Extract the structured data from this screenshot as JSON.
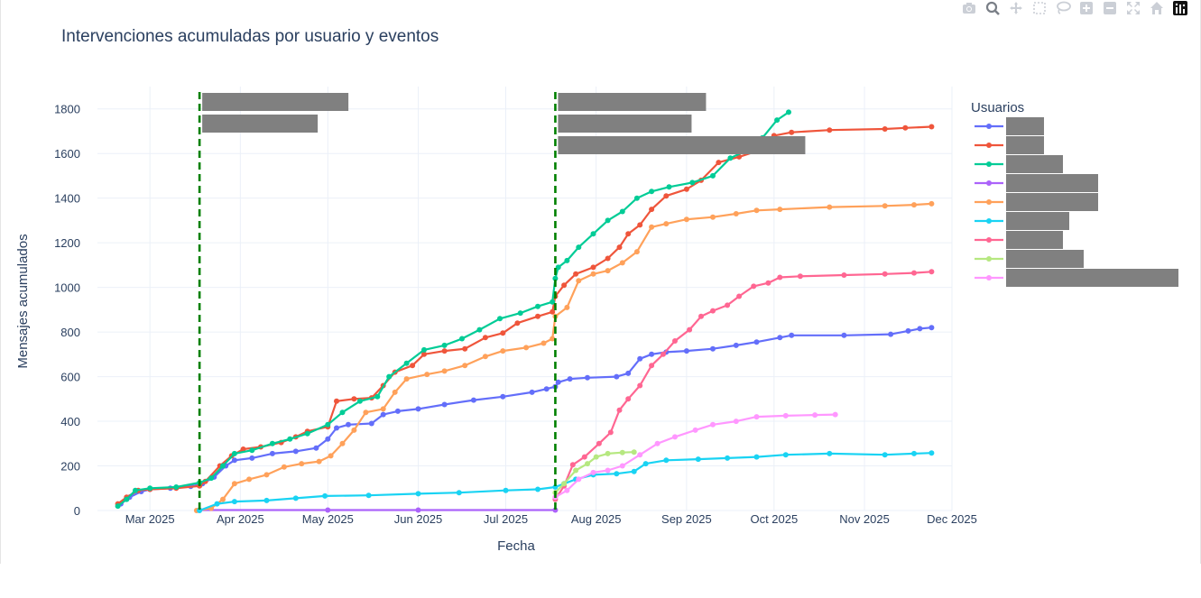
{
  "toolbar": {
    "icons": [
      "camera-icon",
      "zoom-icon",
      "pan-icon",
      "box-select-icon",
      "lasso-icon",
      "zoom-in-icon",
      "zoom-out-icon",
      "autoscale-icon",
      "home-icon",
      "plotly-logo-icon"
    ]
  },
  "chart_data": {
    "type": "line",
    "title": "Intervenciones acumuladas por usuario y eventos",
    "xlabel": "Fecha",
    "ylabel": "Mensajes acumulados",
    "x_ticks": [
      "Mar 2025",
      "Apr 2025",
      "May 2025",
      "Jun 2025",
      "Jul 2025",
      "Aug 2025",
      "Sep 2025",
      "Oct 2025",
      "Nov 2025",
      "Dec 2025"
    ],
    "y_ticks": [
      "0",
      "200",
      "400",
      "600",
      "800",
      "1000",
      "1200",
      "1400",
      "1600",
      "1800"
    ],
    "xlim": [
      "2025-02-11",
      "2025-12-01"
    ],
    "ylim": [
      0,
      1900
    ],
    "grid": true,
    "legend_title": "Usuarios",
    "legend_position": "right",
    "events": [
      {
        "date": "2025-03-18",
        "color": "#008000",
        "style": "dashed",
        "labels_redacted": 2
      },
      {
        "date": "2025-07-18",
        "color": "#008000",
        "style": "dashed",
        "labels_redacted": 3
      }
    ],
    "series": [
      {
        "color": "#636efa",
        "points": [
          [
            "2025-02-19",
            30
          ],
          [
            "2025-02-22",
            60
          ],
          [
            "2025-02-26",
            85
          ],
          [
            "2025-03-01",
            95
          ],
          [
            "2025-03-08",
            100
          ],
          [
            "2025-03-15",
            108
          ],
          [
            "2025-03-19",
            120
          ],
          [
            "2025-03-23",
            150
          ],
          [
            "2025-03-27",
            200
          ],
          [
            "2025-03-30",
            225
          ],
          [
            "2025-04-05",
            235
          ],
          [
            "2025-04-12",
            255
          ],
          [
            "2025-04-20",
            265
          ],
          [
            "2025-04-27",
            280
          ],
          [
            "2025-05-01",
            320
          ],
          [
            "2025-05-04",
            370
          ],
          [
            "2025-05-08",
            385
          ],
          [
            "2025-05-16",
            390
          ],
          [
            "2025-05-20",
            430
          ],
          [
            "2025-05-25",
            445
          ],
          [
            "2025-06-01",
            455
          ],
          [
            "2025-06-10",
            475
          ],
          [
            "2025-06-20",
            495
          ],
          [
            "2025-06-30",
            510
          ],
          [
            "2025-07-10",
            530
          ],
          [
            "2025-07-15",
            545
          ],
          [
            "2025-07-18",
            555
          ],
          [
            "2025-07-19",
            575
          ],
          [
            "2025-07-23",
            590
          ],
          [
            "2025-07-29",
            595
          ],
          [
            "2025-08-08",
            600
          ],
          [
            "2025-08-12",
            615
          ],
          [
            "2025-08-16",
            680
          ],
          [
            "2025-08-20",
            700
          ],
          [
            "2025-08-25",
            710
          ],
          [
            "2025-09-01",
            715
          ],
          [
            "2025-09-10",
            725
          ],
          [
            "2025-09-18",
            740
          ],
          [
            "2025-09-25",
            755
          ],
          [
            "2025-10-03",
            775
          ],
          [
            "2025-10-07",
            785
          ],
          [
            "2025-10-25",
            785
          ],
          [
            "2025-11-10",
            790
          ],
          [
            "2025-11-16",
            805
          ],
          [
            "2025-11-20",
            815
          ],
          [
            "2025-11-24",
            820
          ]
        ]
      },
      {
        "color": "#ef553b",
        "points": [
          [
            "2025-02-18",
            30
          ],
          [
            "2025-02-21",
            60
          ],
          [
            "2025-02-25",
            90
          ],
          [
            "2025-03-01",
            95
          ],
          [
            "2025-03-10",
            100
          ],
          [
            "2025-03-18",
            110
          ],
          [
            "2025-03-20",
            130
          ],
          [
            "2025-03-25",
            200
          ],
          [
            "2025-03-29",
            245
          ],
          [
            "2025-04-02",
            275
          ],
          [
            "2025-04-08",
            285
          ],
          [
            "2025-04-15",
            305
          ],
          [
            "2025-04-20",
            330
          ],
          [
            "2025-04-24",
            355
          ],
          [
            "2025-05-01",
            375
          ],
          [
            "2025-05-04",
            490
          ],
          [
            "2025-05-10",
            500
          ],
          [
            "2025-05-16",
            505
          ],
          [
            "2025-05-20",
            560
          ],
          [
            "2025-05-24",
            620
          ],
          [
            "2025-05-30",
            650
          ],
          [
            "2025-06-03",
            700
          ],
          [
            "2025-06-10",
            715
          ],
          [
            "2025-06-17",
            725
          ],
          [
            "2025-06-24",
            775
          ],
          [
            "2025-06-30",
            795
          ],
          [
            "2025-07-05",
            840
          ],
          [
            "2025-07-12",
            870
          ],
          [
            "2025-07-17",
            890
          ],
          [
            "2025-07-18",
            960
          ],
          [
            "2025-07-21",
            1010
          ],
          [
            "2025-07-25",
            1060
          ],
          [
            "2025-07-31",
            1090
          ],
          [
            "2025-08-05",
            1130
          ],
          [
            "2025-08-09",
            1180
          ],
          [
            "2025-08-12",
            1240
          ],
          [
            "2025-08-16",
            1280
          ],
          [
            "2025-08-20",
            1350
          ],
          [
            "2025-08-25",
            1410
          ],
          [
            "2025-09-01",
            1440
          ],
          [
            "2025-09-06",
            1480
          ],
          [
            "2025-09-12",
            1560
          ],
          [
            "2025-09-19",
            1585
          ],
          [
            "2025-09-25",
            1610
          ],
          [
            "2025-10-01",
            1680
          ],
          [
            "2025-10-07",
            1695
          ],
          [
            "2025-10-20",
            1705
          ],
          [
            "2025-11-08",
            1710
          ],
          [
            "2025-11-15",
            1715
          ],
          [
            "2025-11-24",
            1720
          ]
        ]
      },
      {
        "color": "#00cc96",
        "points": [
          [
            "2025-02-18",
            20
          ],
          [
            "2025-02-21",
            50
          ],
          [
            "2025-02-24",
            90
          ],
          [
            "2025-03-01",
            100
          ],
          [
            "2025-03-10",
            105
          ],
          [
            "2025-03-18",
            125
          ],
          [
            "2025-03-22",
            145
          ],
          [
            "2025-03-26",
            200
          ],
          [
            "2025-03-30",
            255
          ],
          [
            "2025-04-05",
            270
          ],
          [
            "2025-04-12",
            300
          ],
          [
            "2025-04-18",
            320
          ],
          [
            "2025-04-24",
            345
          ],
          [
            "2025-05-01",
            385
          ],
          [
            "2025-05-06",
            440
          ],
          [
            "2025-05-12",
            490
          ],
          [
            "2025-05-18",
            510
          ],
          [
            "2025-05-22",
            600
          ],
          [
            "2025-05-28",
            660
          ],
          [
            "2025-06-03",
            720
          ],
          [
            "2025-06-10",
            740
          ],
          [
            "2025-06-16",
            770
          ],
          [
            "2025-06-22",
            810
          ],
          [
            "2025-06-29",
            860
          ],
          [
            "2025-07-06",
            885
          ],
          [
            "2025-07-12",
            915
          ],
          [
            "2025-07-17",
            935
          ],
          [
            "2025-07-18",
            1040
          ],
          [
            "2025-07-19",
            1090
          ],
          [
            "2025-07-22",
            1120
          ],
          [
            "2025-07-26",
            1180
          ],
          [
            "2025-07-31",
            1240
          ],
          [
            "2025-08-05",
            1300
          ],
          [
            "2025-08-10",
            1340
          ],
          [
            "2025-08-15",
            1400
          ],
          [
            "2025-08-20",
            1430
          ],
          [
            "2025-08-26",
            1450
          ],
          [
            "2025-09-03",
            1470
          ],
          [
            "2025-09-10",
            1500
          ],
          [
            "2025-09-16",
            1580
          ],
          [
            "2025-09-21",
            1610
          ],
          [
            "2025-09-27",
            1670
          ],
          [
            "2025-10-02",
            1750
          ],
          [
            "2025-10-06",
            1785
          ]
        ]
      },
      {
        "color": "#ab63fa",
        "points": [
          [
            "2025-03-18",
            2
          ],
          [
            "2025-05-01",
            2
          ],
          [
            "2025-06-01",
            2
          ],
          [
            "2025-07-18",
            2
          ]
        ]
      },
      {
        "color": "#ffa15a",
        "points": [
          [
            "2025-03-17",
            0
          ],
          [
            "2025-03-22",
            10
          ],
          [
            "2025-03-26",
            50
          ],
          [
            "2025-03-30",
            120
          ],
          [
            "2025-04-04",
            140
          ],
          [
            "2025-04-10",
            160
          ],
          [
            "2025-04-16",
            195
          ],
          [
            "2025-04-22",
            210
          ],
          [
            "2025-04-28",
            220
          ],
          [
            "2025-05-02",
            245
          ],
          [
            "2025-05-06",
            300
          ],
          [
            "2025-05-10",
            360
          ],
          [
            "2025-05-14",
            440
          ],
          [
            "2025-05-20",
            455
          ],
          [
            "2025-05-24",
            530
          ],
          [
            "2025-05-28",
            590
          ],
          [
            "2025-06-04",
            610
          ],
          [
            "2025-06-10",
            625
          ],
          [
            "2025-06-17",
            650
          ],
          [
            "2025-06-24",
            690
          ],
          [
            "2025-06-30",
            715
          ],
          [
            "2025-07-08",
            730
          ],
          [
            "2025-07-14",
            750
          ],
          [
            "2025-07-17",
            770
          ],
          [
            "2025-07-18",
            870
          ],
          [
            "2025-07-22",
            910
          ],
          [
            "2025-07-26",
            1030
          ],
          [
            "2025-07-31",
            1060
          ],
          [
            "2025-08-05",
            1075
          ],
          [
            "2025-08-10",
            1110
          ],
          [
            "2025-08-15",
            1160
          ],
          [
            "2025-08-20",
            1270
          ],
          [
            "2025-08-25",
            1285
          ],
          [
            "2025-09-01",
            1305
          ],
          [
            "2025-09-10",
            1315
          ],
          [
            "2025-09-18",
            1330
          ],
          [
            "2025-09-25",
            1345
          ],
          [
            "2025-10-03",
            1350
          ],
          [
            "2025-10-20",
            1360
          ],
          [
            "2025-11-08",
            1365
          ],
          [
            "2025-11-18",
            1370
          ],
          [
            "2025-11-24",
            1375
          ]
        ]
      },
      {
        "color": "#19d3f3",
        "points": [
          [
            "2025-03-18",
            0
          ],
          [
            "2025-03-24",
            30
          ],
          [
            "2025-03-30",
            40
          ],
          [
            "2025-04-10",
            45
          ],
          [
            "2025-04-20",
            55
          ],
          [
            "2025-04-30",
            65
          ],
          [
            "2025-05-15",
            68
          ],
          [
            "2025-06-01",
            75
          ],
          [
            "2025-06-15",
            80
          ],
          [
            "2025-07-01",
            90
          ],
          [
            "2025-07-12",
            95
          ],
          [
            "2025-07-18",
            105
          ],
          [
            "2025-07-21",
            120
          ],
          [
            "2025-07-25",
            140
          ],
          [
            "2025-07-31",
            160
          ],
          [
            "2025-08-08",
            165
          ],
          [
            "2025-08-14",
            175
          ],
          [
            "2025-08-18",
            210
          ],
          [
            "2025-08-25",
            225
          ],
          [
            "2025-09-05",
            230
          ],
          [
            "2025-09-15",
            235
          ],
          [
            "2025-09-25",
            240
          ],
          [
            "2025-10-05",
            250
          ],
          [
            "2025-10-20",
            255
          ],
          [
            "2025-11-08",
            250
          ],
          [
            "2025-11-18",
            255
          ],
          [
            "2025-11-24",
            258
          ]
        ]
      },
      {
        "color": "#ff6692",
        "points": [
          [
            "2025-07-18",
            50
          ],
          [
            "2025-07-21",
            110
          ],
          [
            "2025-07-24",
            205
          ],
          [
            "2025-07-28",
            240
          ],
          [
            "2025-08-02",
            300
          ],
          [
            "2025-08-06",
            350
          ],
          [
            "2025-08-09",
            450
          ],
          [
            "2025-08-12",
            500
          ],
          [
            "2025-08-16",
            560
          ],
          [
            "2025-08-20",
            650
          ],
          [
            "2025-08-24",
            700
          ],
          [
            "2025-08-28",
            760
          ],
          [
            "2025-09-02",
            810
          ],
          [
            "2025-09-06",
            870
          ],
          [
            "2025-09-10",
            895
          ],
          [
            "2025-09-15",
            920
          ],
          [
            "2025-09-19",
            960
          ],
          [
            "2025-09-24",
            1005
          ],
          [
            "2025-09-29",
            1020
          ],
          [
            "2025-10-03",
            1045
          ],
          [
            "2025-10-10",
            1050
          ],
          [
            "2025-10-25",
            1055
          ],
          [
            "2025-11-08",
            1060
          ],
          [
            "2025-11-18",
            1065
          ],
          [
            "2025-11-24",
            1070
          ]
        ]
      },
      {
        "color": "#b6e880",
        "points": [
          [
            "2025-07-18",
            80
          ],
          [
            "2025-07-21",
            120
          ],
          [
            "2025-07-25",
            180
          ],
          [
            "2025-07-29",
            210
          ],
          [
            "2025-08-01",
            240
          ],
          [
            "2025-08-05",
            255
          ],
          [
            "2025-08-10",
            260
          ],
          [
            "2025-08-14",
            262
          ]
        ]
      },
      {
        "color": "#ff97ff",
        "points": [
          [
            "2025-07-18",
            60
          ],
          [
            "2025-07-22",
            90
          ],
          [
            "2025-07-26",
            140
          ],
          [
            "2025-07-31",
            170
          ],
          [
            "2025-08-05",
            180
          ],
          [
            "2025-08-10",
            200
          ],
          [
            "2025-08-16",
            250
          ],
          [
            "2025-08-22",
            300
          ],
          [
            "2025-08-28",
            330
          ],
          [
            "2025-09-04",
            360
          ],
          [
            "2025-09-10",
            385
          ],
          [
            "2025-09-18",
            400
          ],
          [
            "2025-09-25",
            420
          ],
          [
            "2025-10-05",
            425
          ],
          [
            "2025-10-15",
            428
          ],
          [
            "2025-10-22",
            430
          ]
        ]
      }
    ]
  }
}
